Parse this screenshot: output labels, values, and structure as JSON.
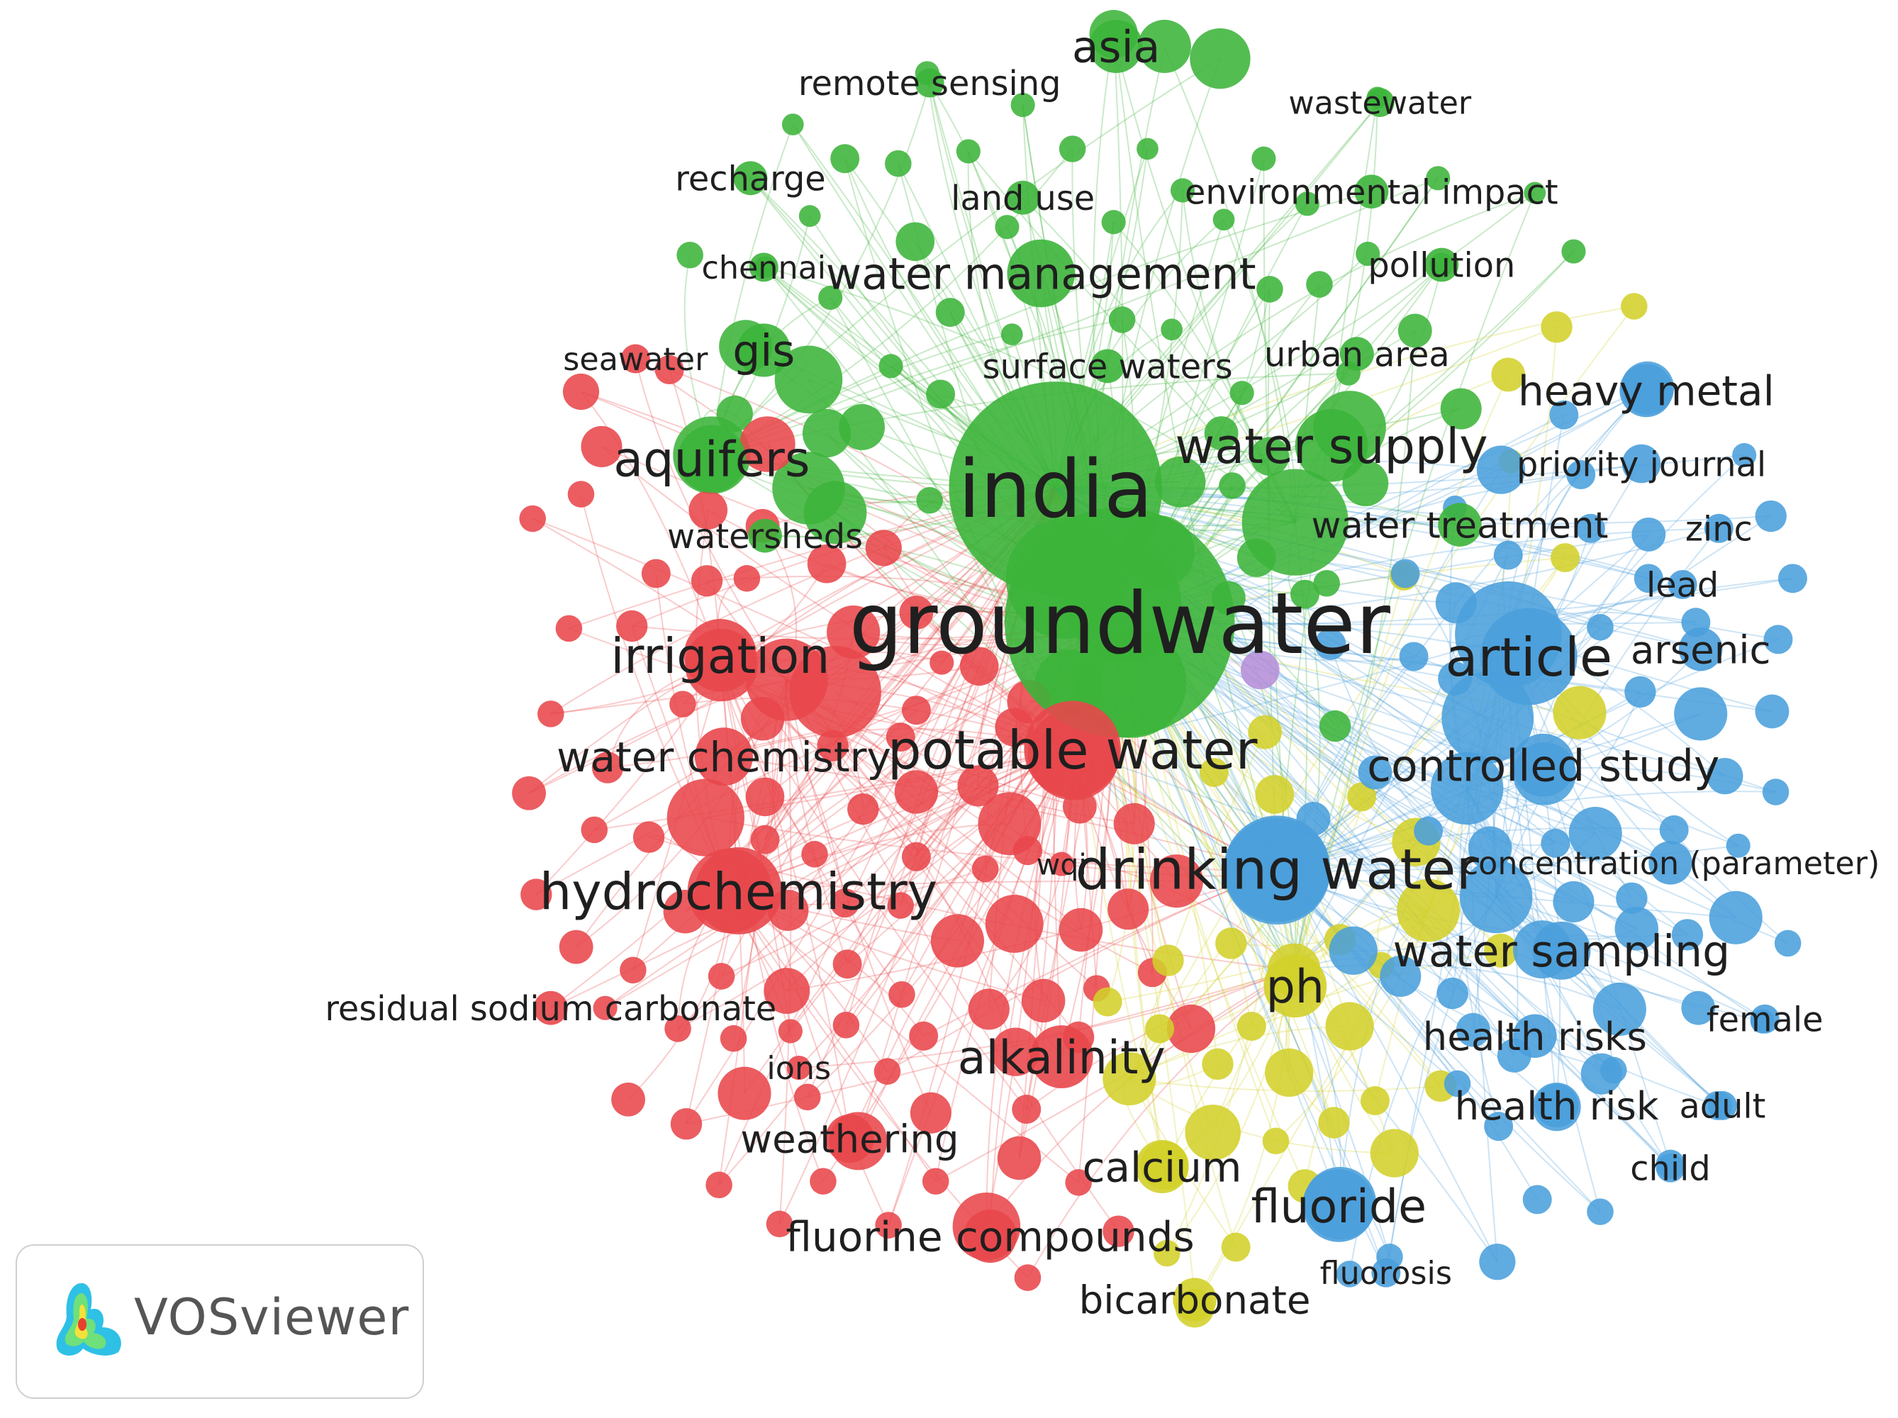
{
  "app": {
    "logo_text": "VOSviewer"
  },
  "colors": {
    "red": "#e8474b",
    "green": "#3cb43a",
    "blue": "#4a9fdc",
    "yellow": "#d3d02a",
    "purple": "#b58ed8"
  },
  "network": {
    "labeled_nodes": [
      {
        "id": "india",
        "label": "india",
        "cluster": "green",
        "weight": 1.0
      },
      {
        "id": "groundwater",
        "label": "groundwater",
        "cluster": "green",
        "weight": 0.95
      },
      {
        "id": "asia",
        "label": "asia",
        "cluster": "green",
        "weight": 0.35
      },
      {
        "id": "remote-sensing",
        "label": "remote sensing",
        "cluster": "green",
        "weight": 0.15
      },
      {
        "id": "wastewater",
        "label": "wastewater",
        "cluster": "green",
        "weight": 0.12
      },
      {
        "id": "recharge",
        "label": "recharge",
        "cluster": "green",
        "weight": 0.15
      },
      {
        "id": "land-use",
        "label": "land use",
        "cluster": "green",
        "weight": 0.15
      },
      {
        "id": "environmental-impact",
        "label": "environmental impact",
        "cluster": "green",
        "weight": 0.15
      },
      {
        "id": "chennai",
        "label": "chennai",
        "cluster": "green",
        "weight": 0.12
      },
      {
        "id": "water-management",
        "label": "water management",
        "cluster": "green",
        "weight": 0.3
      },
      {
        "id": "pollution",
        "label": "pollution",
        "cluster": "green",
        "weight": 0.15
      },
      {
        "id": "gis",
        "label": "gis",
        "cluster": "green",
        "weight": 0.25
      },
      {
        "id": "surface-waters",
        "label": "surface waters",
        "cluster": "green",
        "weight": 0.15
      },
      {
        "id": "urban-area",
        "label": "urban area",
        "cluster": "green",
        "weight": 0.15
      },
      {
        "id": "water-supply",
        "label": "water supply",
        "cluster": "green",
        "weight": 0.35
      },
      {
        "id": "aquifers",
        "label": "aquifers",
        "cluster": "green",
        "weight": 0.3
      },
      {
        "id": "water-treatment",
        "label": "water treatment",
        "cluster": "green",
        "weight": 0.2
      },
      {
        "id": "watersheds",
        "label": "watersheds",
        "cluster": "green",
        "weight": 0.15
      },
      {
        "id": "seawater",
        "label": "seawater",
        "cluster": "red",
        "weight": 0.12
      },
      {
        "id": "irrigation",
        "label": "irrigation",
        "cluster": "red",
        "weight": 0.35
      },
      {
        "id": "water-chemistry",
        "label": "water chemistry",
        "cluster": "red",
        "weight": 0.25
      },
      {
        "id": "potable-water",
        "label": "potable water",
        "cluster": "red",
        "weight": 0.45
      },
      {
        "id": "hydrochemistry",
        "label": "hydrochemistry",
        "cluster": "red",
        "weight": 0.4
      },
      {
        "id": "wqi",
        "label": "wqi",
        "cluster": "red",
        "weight": 0.1
      },
      {
        "id": "residual-sodium-carbonate",
        "label": "residual sodium carbonate",
        "cluster": "red",
        "weight": 0.15
      },
      {
        "id": "ions",
        "label": "ions",
        "cluster": "red",
        "weight": 0.12
      },
      {
        "id": "alkalinity",
        "label": "alkalinity",
        "cluster": "red",
        "weight": 0.3
      },
      {
        "id": "weathering",
        "label": "weathering",
        "cluster": "red",
        "weight": 0.2
      },
      {
        "id": "fluorine-compounds",
        "label": "fluorine compounds",
        "cluster": "red",
        "weight": 0.25
      },
      {
        "id": "heavy-metal",
        "label": "heavy metal",
        "cluster": "blue",
        "weight": 0.3
      },
      {
        "id": "priority-journal",
        "label": "priority journal",
        "cluster": "blue",
        "weight": 0.2
      },
      {
        "id": "zinc",
        "label": "zinc",
        "cluster": "blue",
        "weight": 0.12
      },
      {
        "id": "lead",
        "label": "lead",
        "cluster": "blue",
        "weight": 0.12
      },
      {
        "id": "article",
        "label": "article",
        "cluster": "blue",
        "weight": 0.5
      },
      {
        "id": "arsenic",
        "label": "arsenic",
        "cluster": "blue",
        "weight": 0.2
      },
      {
        "id": "controlled-study",
        "label": "controlled study",
        "cluster": "blue",
        "weight": 0.3
      },
      {
        "id": "drinking-water",
        "label": "drinking water",
        "cluster": "blue",
        "weight": 0.55
      },
      {
        "id": "concentration",
        "label": "concentration (parameter)",
        "cluster": "blue",
        "weight": 0.2
      },
      {
        "id": "water-sampling",
        "label": "water sampling",
        "cluster": "blue",
        "weight": 0.3
      },
      {
        "id": "female",
        "label": "female",
        "cluster": "blue",
        "weight": 0.12
      },
      {
        "id": "health-risks",
        "label": "health risks",
        "cluster": "blue",
        "weight": 0.2
      },
      {
        "id": "health-risk",
        "label": "health risk",
        "cluster": "blue",
        "weight": 0.2
      },
      {
        "id": "adult",
        "label": "adult",
        "cluster": "blue",
        "weight": 0.12
      },
      {
        "id": "child",
        "label": "child",
        "cluster": "blue",
        "weight": 0.12
      },
      {
        "id": "fluoride",
        "label": "fluoride",
        "cluster": "blue",
        "weight": 0.35
      },
      {
        "id": "fluorosis",
        "label": "fluorosis",
        "cluster": "blue",
        "weight": 0.12
      },
      {
        "id": "ph",
        "label": "ph",
        "cluster": "yellow",
        "weight": 0.35
      },
      {
        "id": "calcium",
        "label": "calcium",
        "cluster": "yellow",
        "weight": 0.3
      },
      {
        "id": "bicarbonate",
        "label": "bicarbonate",
        "cluster": "yellow",
        "weight": 0.25
      }
    ]
  }
}
